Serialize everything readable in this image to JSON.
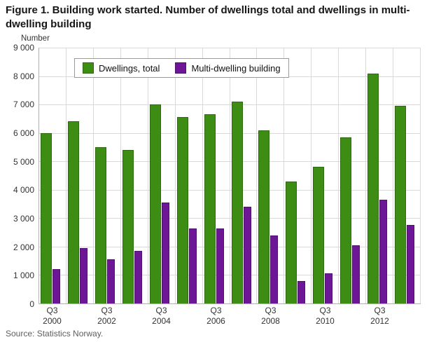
{
  "source": "Source: Statistics Norway.",
  "chart_data": {
    "type": "bar",
    "title": "Figure 1. Building work started. Number of dwellings total and dwellings in multi-dwelling building",
    "ylabel": "Number",
    "xlabel": "",
    "ylim": [
      0,
      9000
    ],
    "ytick_step": 1000,
    "grid": true,
    "legend_position": "top-inside",
    "categories": [
      "Q3 2000",
      "Q3 2001",
      "Q3 2002",
      "Q3 2003",
      "Q3 2004",
      "Q3 2005",
      "Q3 2006",
      "Q3 2007",
      "Q3 2008",
      "Q3 2009",
      "Q3 2010",
      "Q3 2011",
      "Q3 2012",
      "Q3 2013"
    ],
    "xtick_every": 2,
    "series": [
      {
        "name": "Dwellings, total",
        "color": "#3d8c14",
        "border": "#2e6a0f",
        "values": [
          6000,
          6400,
          5500,
          5400,
          7000,
          6550,
          6650,
          7100,
          6100,
          4300,
          4800,
          5850,
          8100,
          6950
        ]
      },
      {
        "name": "Multi-dwelling building",
        "color": "#6d1796",
        "border": "#520f73",
        "values": [
          1200,
          1950,
          1550,
          1850,
          3550,
          2650,
          2650,
          3400,
          2400,
          800,
          1050,
          2050,
          3650,
          2750
        ]
      }
    ]
  }
}
